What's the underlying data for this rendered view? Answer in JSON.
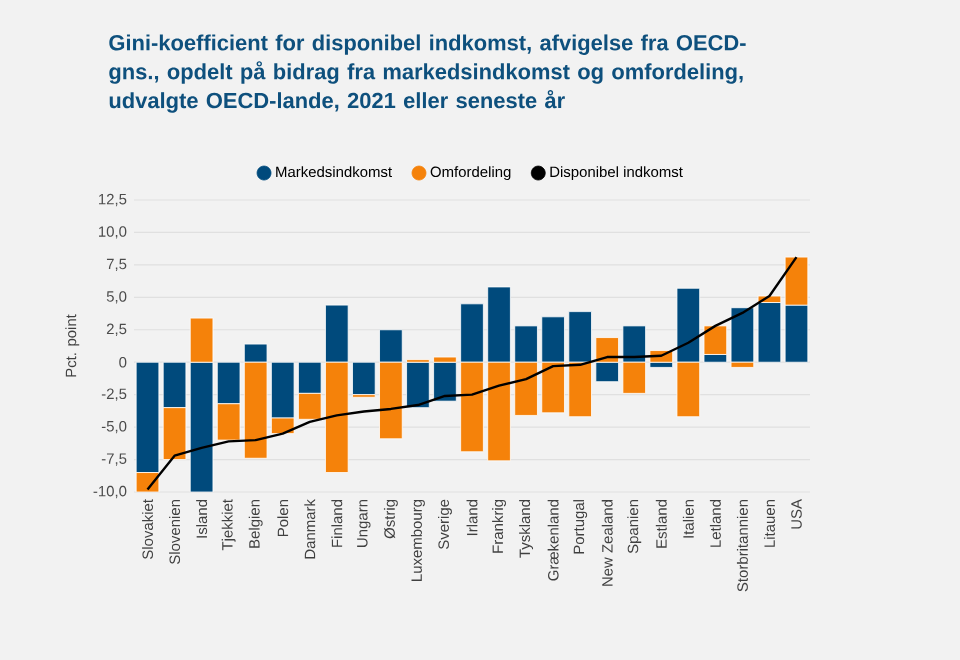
{
  "chart_data": {
    "type": "bar",
    "stacked": true,
    "title": "Gini-koefficient for disponibel indkomst, afvigelse fra OECD-gns., opdelt på bidrag fra markedsindkomst og omfordeling, udvalgte OECD-lande, 2021 eller seneste år",
    "ylabel": "Pct. point",
    "categories": [
      "Slovakiet",
      "Slovenien",
      "Island",
      "Tjekkiet",
      "Belgien",
      "Polen",
      "Danmark",
      "Finland",
      "Ungarn",
      "Østrig",
      "Luxembourg",
      "Sverige",
      "Irland",
      "Frankrig",
      "Tyskland",
      "Grækenland",
      "Portugal",
      "New Zealand",
      "Spanien",
      "Estland",
      "Italien",
      "Letland",
      "Storbritannien",
      "Litauen",
      "USA"
    ],
    "series": [
      {
        "name": "Markedsindkomst",
        "color": "#004a7c",
        "values": [
          -8.5,
          -3.5,
          -10.0,
          -3.2,
          1.4,
          -4.3,
          -2.4,
          4.4,
          -2.5,
          2.5,
          -3.5,
          -3.0,
          4.5,
          5.8,
          2.8,
          3.5,
          3.9,
          -1.5,
          2.8,
          -0.4,
          5.7,
          0.6,
          4.2,
          4.6,
          4.4
        ]
      },
      {
        "name": "Omfordeling",
        "color": "#f5820a",
        "values": [
          -1.5,
          -4.0,
          3.4,
          -2.8,
          -7.4,
          -1.2,
          -2.0,
          -8.5,
          -0.2,
          -5.9,
          0.2,
          0.4,
          -6.9,
          -7.6,
          -4.1,
          -3.9,
          -4.2,
          1.9,
          -2.4,
          0.9,
          -4.2,
          2.2,
          -0.4,
          0.5,
          3.7
        ]
      },
      {
        "name": "Disponibel indkomst",
        "type": "line",
        "color": "#000000",
        "values": [
          -9.8,
          -7.2,
          -6.6,
          -6.1,
          -6.0,
          -5.5,
          -4.6,
          -4.1,
          -3.8,
          -3.6,
          -3.3,
          -2.6,
          -2.5,
          -1.8,
          -1.3,
          -0.3,
          -0.2,
          0.4,
          0.4,
          0.5,
          1.5,
          2.8,
          3.8,
          5.1,
          8.1
        ]
      }
    ],
    "ylim": [
      -10,
      12.5
    ],
    "yticks": [
      {
        "value": -10,
        "label": "-10,0"
      },
      {
        "value": -7.5,
        "label": "-7,5"
      },
      {
        "value": -5,
        "label": "-5,0"
      },
      {
        "value": -2.5,
        "label": "-2,5"
      },
      0,
      {
        "value": 2.5,
        "label": "2,5"
      },
      {
        "value": 5,
        "label": "5,0"
      },
      {
        "value": 7.5,
        "label": "7,5"
      },
      {
        "value": 10,
        "label": "10,0"
      },
      {
        "value": 12.5,
        "label": "12,5"
      }
    ],
    "grid": "y",
    "legend": "top",
    "marker": "none",
    "line_style": "solid"
  }
}
